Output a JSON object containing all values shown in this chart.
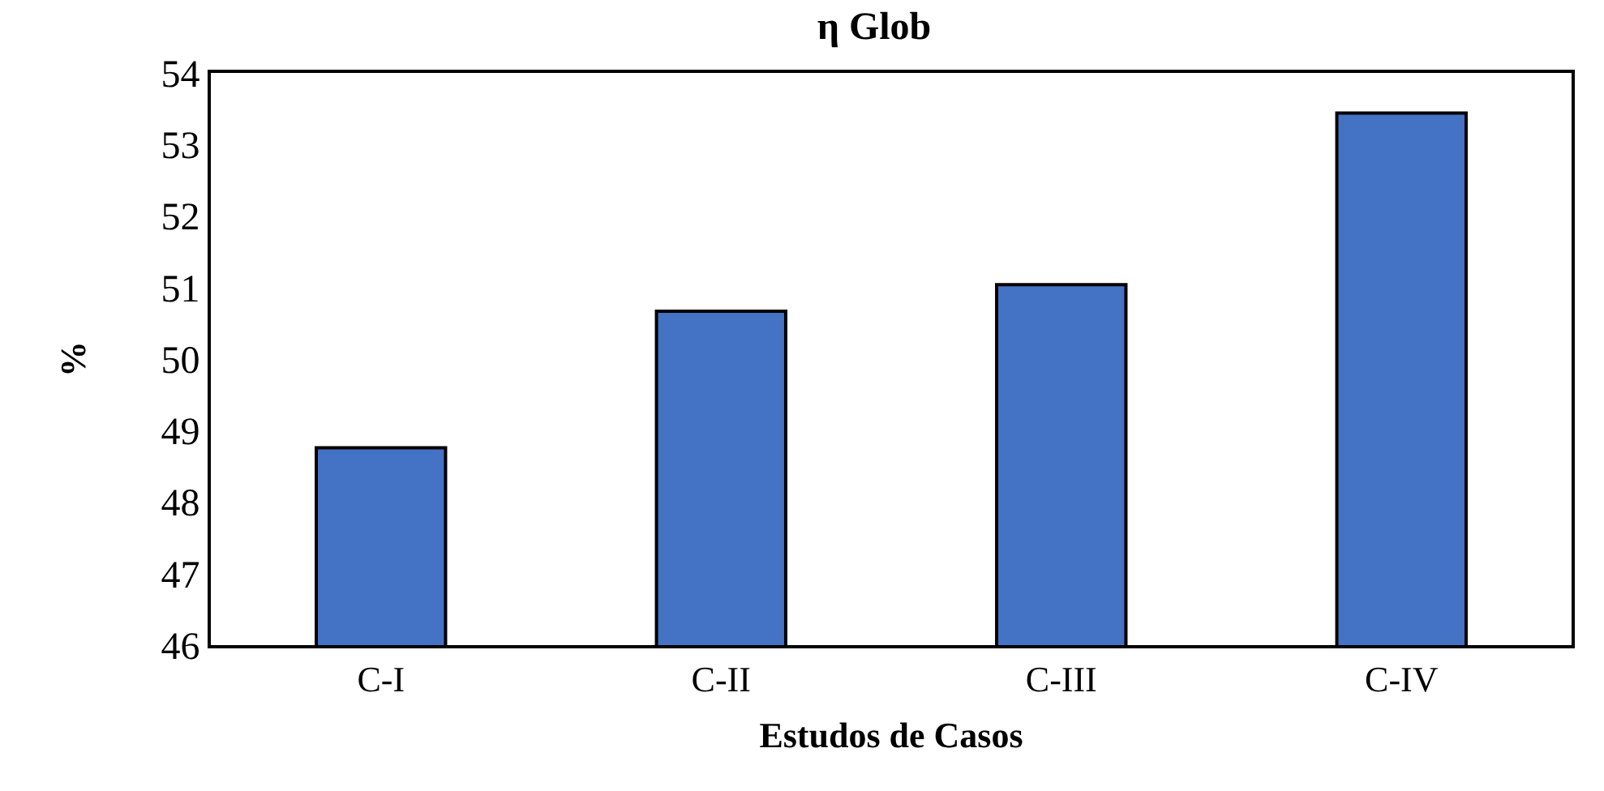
{
  "chart_data": {
    "type": "bar",
    "title": "η Glob",
    "xlabel": "Estudos de Casos",
    "ylabel": "%",
    "categories": [
      "C-I",
      "C-II",
      "C-III",
      "C-IV"
    ],
    "values": [
      48.76,
      50.67,
      51.04,
      53.44
    ],
    "color": "#4472c4",
    "ylim": [
      46,
      54
    ],
    "yticks": [
      46,
      47,
      48,
      49,
      50,
      51,
      52,
      53,
      54
    ]
  }
}
